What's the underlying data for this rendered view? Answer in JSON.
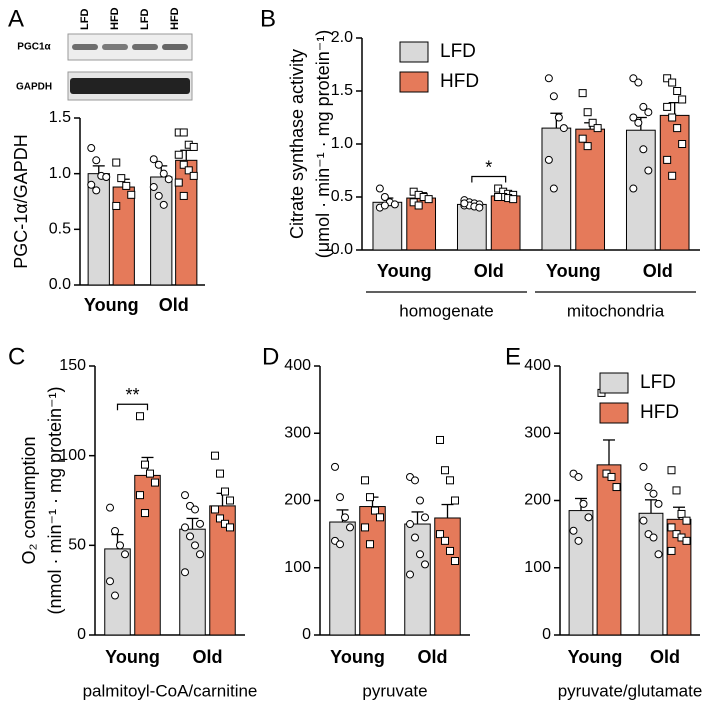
{
  "chart_data": [
    {
      "type": "bar",
      "panel": "A",
      "blot": {
        "lanes": [
          "LFD",
          "HFD",
          "LFD",
          "HFD"
        ],
        "bands": [
          "PGC1α",
          "GAPDH"
        ]
      },
      "ylabel": [
        "PGC-1α/GAPDH"
      ],
      "categories": [
        "Young",
        "Old"
      ],
      "ylim": [
        0,
        1.5
      ],
      "yticks": [
        {
          "value": 0,
          "label": "0.0"
        },
        0.5,
        {
          "value": 1,
          "label": "1.0"
        },
        1.5
      ],
      "legend": false,
      "series": [
        {
          "name": "LFD",
          "color": "#d9d9d9",
          "marker": "circle",
          "values": [
            1.0,
            0.97
          ],
          "errors": [
            0.07,
            0.1
          ],
          "points": [
            [
              1.23,
              1.12,
              0.98,
              0.97,
              0.9,
              0.85
            ],
            [
              1.13,
              1.08,
              1.0,
              0.95,
              0.88,
              0.8,
              0.72
            ]
          ]
        },
        {
          "name": "HFD",
          "color": "#e57a5a",
          "marker": "square",
          "values": [
            0.88,
            1.12
          ],
          "errors": [
            0.07,
            0.09
          ],
          "points": [
            [
              1.1,
              0.96,
              0.89,
              0.81,
              0.71
            ],
            [
              1.37,
              1.37,
              1.26,
              1.24,
              1.17,
              1.08,
              1.03,
              0.98,
              0.92,
              0.8
            ]
          ]
        }
      ]
    },
    {
      "type": "bar",
      "panel": "B",
      "ylabel": [
        "Citrate synthase activity",
        "(μmol · min⁻¹ ·  mg protein⁻¹)"
      ],
      "categories": [
        "Young",
        "Old",
        "Young",
        "Old"
      ],
      "group_labels": [
        "homogenate",
        "mitochondria"
      ],
      "ylim": [
        0,
        2
      ],
      "yticks": [
        {
          "value": 0,
          "label": "0.0"
        },
        0.5,
        {
          "value": 1,
          "label": "1.0"
        },
        1.5,
        {
          "value": 2,
          "label": "2.0"
        }
      ],
      "legend": true,
      "annotations": [
        "*"
      ],
      "series": [
        {
          "name": "LFD",
          "color": "#d9d9d9",
          "marker": "circle",
          "values": [
            0.45,
            0.43,
            1.15,
            1.13
          ],
          "errors": [
            0.04,
            0.02,
            0.14,
            0.12
          ],
          "points": [
            [
              0.58,
              0.5,
              0.45,
              0.43,
              0.4,
              0.42
            ],
            [
              0.47,
              0.45,
              0.44,
              0.43,
              0.42,
              0.42,
              0.41,
              0.4,
              0.44
            ],
            [
              1.62,
              1.45,
              1.25,
              1.15,
              0.85,
              0.58
            ],
            [
              1.62,
              1.58,
              1.35,
              1.3,
              1.25,
              1.2,
              0.95,
              0.75,
              0.58
            ]
          ]
        },
        {
          "name": "HFD",
          "color": "#e57a5a",
          "marker": "square",
          "values": [
            0.49,
            0.51,
            1.14,
            1.27
          ],
          "errors": [
            0.05,
            0.02,
            0.06,
            0.12
          ],
          "points": [
            [
              0.55,
              0.52,
              0.5,
              0.48,
              0.45,
              0.42
            ],
            [
              0.58,
              0.55,
              0.53,
              0.52,
              0.5,
              0.5,
              0.49,
              0.48,
              0.5
            ],
            [
              1.48,
              1.3,
              1.2,
              1.15,
              1.05,
              0.98
            ],
            [
              1.62,
              1.58,
              1.5,
              1.42,
              1.35,
              1.25,
              1.15,
              1.0,
              0.85,
              0.7
            ]
          ]
        }
      ]
    },
    {
      "type": "bar",
      "panel": "C",
      "ylabel": [
        "O₂ consumption",
        "(nmol · min⁻¹ · mg protein⁻¹)"
      ],
      "categories": [
        "Young",
        "Old"
      ],
      "xlabel": "palmitoyl-CoA/carnitine",
      "ylim": [
        0,
        150
      ],
      "yticks": [
        0,
        50,
        100,
        150
      ],
      "legend": false,
      "annotations": [
        "**"
      ],
      "series": [
        {
          "name": "LFD",
          "color": "#d9d9d9",
          "marker": "circle",
          "values": [
            48,
            59
          ],
          "errors": [
            8,
            6
          ],
          "points": [
            [
              71,
              58,
              50,
              45,
              30,
              22
            ],
            [
              78,
              72,
              70,
              62,
              60,
              55,
              50,
              45,
              35
            ]
          ]
        },
        {
          "name": "HFD",
          "color": "#e57a5a",
          "marker": "square",
          "values": [
            89,
            72
          ],
          "errors": [
            10,
            7
          ],
          "points": [
            [
              122,
              95,
              90,
              85,
              78,
              68
            ],
            [
              100,
              90,
              80,
              75,
              70,
              65,
              62,
              60
            ]
          ]
        }
      ]
    },
    {
      "type": "bar",
      "panel": "D",
      "categories": [
        "Young",
        "Old"
      ],
      "xlabel": "pyruvate",
      "ylim": [
        0,
        400
      ],
      "yticks": [
        0,
        100,
        200,
        300,
        400
      ],
      "legend": false,
      "series": [
        {
          "name": "LFD",
          "color": "#d9d9d9",
          "marker": "circle",
          "values": [
            168,
            165
          ],
          "errors": [
            18,
            18
          ],
          "points": [
            [
              250,
              205,
              175,
              160,
              140,
              135
            ],
            [
              235,
              230,
              200,
              175,
              165,
              145,
              120,
              105,
              90
            ]
          ]
        },
        {
          "name": "HFD",
          "color": "#e57a5a",
          "marker": "square",
          "values": [
            191,
            174
          ],
          "errors": [
            14,
            20
          ],
          "points": [
            [
              230,
              205,
              185,
              175,
              160,
              135
            ],
            [
              290,
              245,
              230,
              200,
              150,
              140,
              125,
              110
            ]
          ]
        }
      ]
    },
    {
      "type": "bar",
      "panel": "E",
      "categories": [
        "Young",
        "Old"
      ],
      "xlabel": "pyruvate/glutamate",
      "ylim": [
        0,
        400
      ],
      "yticks": [
        0,
        100,
        200,
        300,
        400
      ],
      "legend": true,
      "series": [
        {
          "name": "LFD",
          "color": "#d9d9d9",
          "marker": "circle",
          "values": [
            185,
            181
          ],
          "errors": [
            18,
            20
          ],
          "points": [
            [
              240,
              235,
              195,
              175,
              155,
              140
            ],
            [
              250,
              220,
              210,
              195,
              170,
              150,
              145,
              120
            ]
          ]
        },
        {
          "name": "HFD",
          "color": "#e57a5a",
          "marker": "square",
          "values": [
            253,
            172
          ],
          "errors": [
            37,
            18
          ],
          "points": [
            [
              360,
              240,
              235,
              220
            ],
            [
              245,
              215,
              180,
              170,
              160,
              150,
              145,
              140,
              125
            ]
          ]
        }
      ]
    }
  ]
}
